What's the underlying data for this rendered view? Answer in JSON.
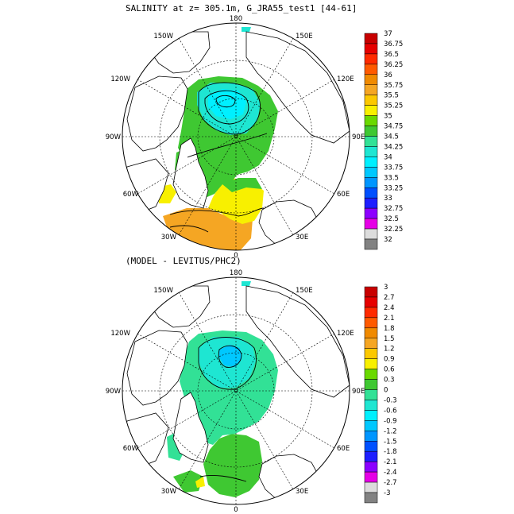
{
  "panels": [
    {
      "title": "SALINITY at z= 305.1m, G_JRA55_test1 [44-61]",
      "lon_labels": {
        "top": "180",
        "bottom": "0",
        "left": "90W",
        "right": "90E",
        "ul1": "150W",
        "ul2": "120W",
        "ur1": "150E",
        "ur2": "120E",
        "ll1": "60W",
        "ll2": "30W",
        "lr1": "60E",
        "lr2": "30E"
      },
      "colorbar": {
        "labels": [
          "37",
          "36.75",
          "36.5",
          "36.25",
          "36",
          "35.75",
          "35.5",
          "35.25",
          "35",
          "34.75",
          "34.5",
          "34.25",
          "34",
          "33.75",
          "33.5",
          "33.25",
          "33",
          "32.75",
          "32.5",
          "32.25",
          "32"
        ],
        "colors": [
          "#c80000",
          "#e60000",
          "#ff2a00",
          "#ff5a00",
          "#f08a00",
          "#f5a623",
          "#fcc800",
          "#f8f000",
          "#6ad900",
          "#3fc832",
          "#32e196",
          "#1ee6d2",
          "#00f0ff",
          "#00c8ff",
          "#0096ff",
          "#0050ff",
          "#1e1eff",
          "#8c00ff",
          "#e600e6",
          "#dcdcdc"
        ],
        "bottom_color": "#828282"
      }
    },
    {
      "title": "(MODEL - LEVITUS/PHC2)",
      "lon_labels": {
        "top": "180",
        "bottom": "0",
        "left": "90W",
        "right": "90E",
        "ul1": "150W",
        "ul2": "120W",
        "ur1": "150E",
        "ur2": "120E",
        "ll1": "60W",
        "ll2": "30W",
        "lr1": "60E",
        "lr2": "30E"
      },
      "colorbar": {
        "labels": [
          "3",
          "2.7",
          "2.4",
          "2.1",
          "1.8",
          "1.5",
          "1.2",
          "0.9",
          "0.6",
          "0.3",
          "0",
          "-0.3",
          "-0.6",
          "-0.9",
          "-1.2",
          "-1.5",
          "-1.8",
          "-2.1",
          "-2.4",
          "-2.7",
          "-3"
        ],
        "colors": [
          "#c80000",
          "#e60000",
          "#ff2a00",
          "#ff5a00",
          "#f08a00",
          "#f5a623",
          "#fcc800",
          "#f8f000",
          "#6ad900",
          "#3fc832",
          "#32e196",
          "#1ee6d2",
          "#00f0ff",
          "#00c8ff",
          "#0096ff",
          "#0050ff",
          "#1e1eff",
          "#8c00ff",
          "#e600e6",
          "#dcdcdc"
        ],
        "bottom_color": "#828282"
      }
    }
  ]
}
